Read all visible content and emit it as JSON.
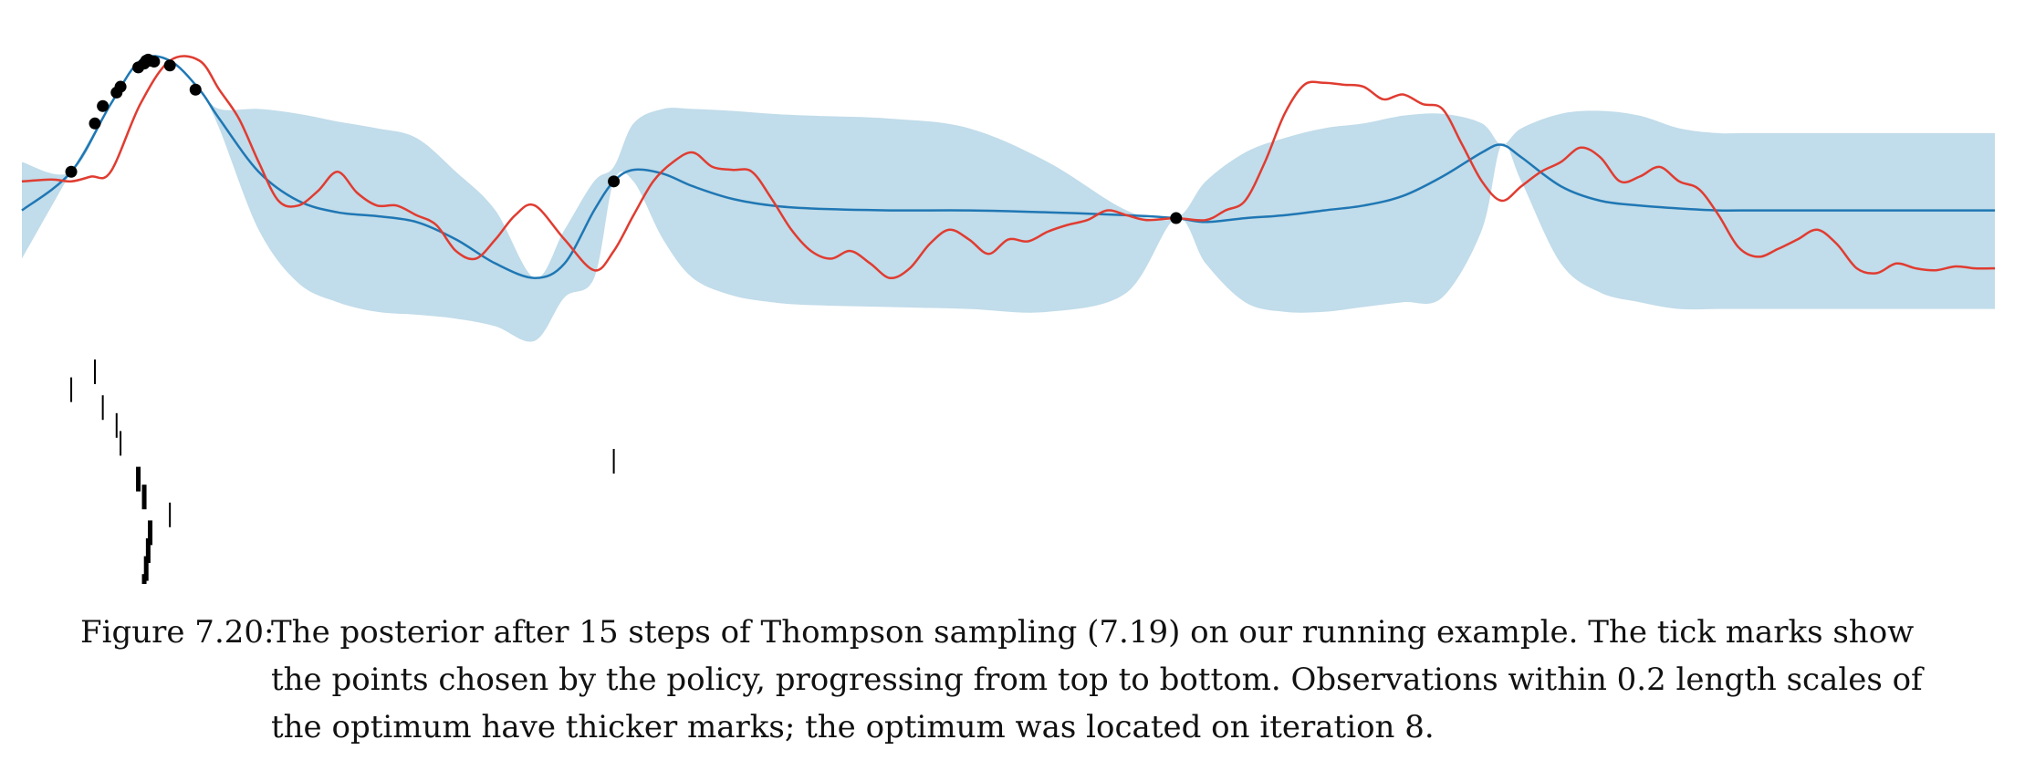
{
  "chart_data": {
    "type": "line",
    "title": "",
    "xlabel": "",
    "ylabel": "",
    "xlim": [
      0,
      1
    ],
    "ylim": [
      -1.6,
      1.8
    ],
    "grid": false,
    "legend": "none",
    "colors": {
      "credible_band": "#c1dcea",
      "posterior_mean": "#1f77b4",
      "thompson_sample": "#e03c31",
      "observations": "#000000",
      "ticks": "#000000"
    },
    "posterior_mean": {
      "x": [
        0,
        0.025,
        0.045,
        0.06,
        0.075,
        0.09,
        0.1,
        0.12,
        0.14,
        0.16,
        0.18,
        0.2,
        0.22,
        0.24,
        0.26,
        0.275,
        0.29,
        0.3,
        0.31,
        0.325,
        0.34,
        0.36,
        0.38,
        0.4,
        0.44,
        0.48,
        0.52,
        0.56,
        0.585,
        0.6,
        0.62,
        0.64,
        0.66,
        0.68,
        0.7,
        0.72,
        0.74,
        0.75,
        0.76,
        0.78,
        0.8,
        0.82,
        0.84,
        0.86,
        0.88,
        1.0
      ],
      "y": [
        0.0,
        0.4,
        1.1,
        1.55,
        1.55,
        1.25,
        0.95,
        0.4,
        0.1,
        -0.02,
        -0.06,
        -0.12,
        -0.3,
        -0.55,
        -0.7,
        -0.55,
        0.0,
        0.3,
        0.42,
        0.38,
        0.25,
        0.12,
        0.05,
        0.02,
        0.0,
        0.0,
        -0.02,
        -0.05,
        -0.08,
        -0.12,
        -0.08,
        -0.05,
        0.0,
        0.05,
        0.15,
        0.35,
        0.6,
        0.68,
        0.55,
        0.25,
        0.1,
        0.05,
        0.02,
        0.0,
        0.0,
        0.0
      ]
    },
    "credible_band": {
      "x": [
        0,
        0.025,
        0.045,
        0.06,
        0.075,
        0.09,
        0.1,
        0.12,
        0.14,
        0.16,
        0.18,
        0.2,
        0.22,
        0.24,
        0.26,
        0.275,
        0.29,
        0.3,
        0.31,
        0.325,
        0.34,
        0.36,
        0.38,
        0.4,
        0.44,
        0.48,
        0.52,
        0.56,
        0.585,
        0.6,
        0.62,
        0.64,
        0.66,
        0.68,
        0.7,
        0.72,
        0.74,
        0.75,
        0.76,
        0.78,
        0.8,
        0.82,
        0.84,
        0.86,
        0.88,
        1.0
      ],
      "upper": [
        0.5,
        0.4,
        1.1,
        1.55,
        1.55,
        1.25,
        1.05,
        1.05,
        1.0,
        0.92,
        0.85,
        0.75,
        0.4,
        0.0,
        -0.7,
        -0.2,
        0.3,
        0.45,
        0.9,
        1.05,
        1.05,
        1.03,
        1.0,
        0.98,
        0.95,
        0.85,
        0.5,
        0.0,
        -0.08,
        0.3,
        0.6,
        0.75,
        0.85,
        0.9,
        0.98,
        1.0,
        0.9,
        0.68,
        0.85,
        1.0,
        1.03,
        0.98,
        0.85,
        0.8,
        0.8,
        0.8
      ],
      "lower": [
        -0.5,
        0.4,
        1.1,
        1.55,
        1.55,
        1.25,
        0.85,
        -0.2,
        -0.75,
        -0.95,
        -1.05,
        -1.08,
        -1.12,
        -1.2,
        -1.35,
        -0.9,
        -0.7,
        0.3,
        0.3,
        -0.3,
        -0.7,
        -0.88,
        -0.95,
        -0.98,
        -1.0,
        -1.02,
        -1.05,
        -0.85,
        -0.08,
        -0.55,
        -0.95,
        -1.05,
        -1.05,
        -1.0,
        -0.95,
        -0.9,
        -0.2,
        0.68,
        0.3,
        -0.55,
        -0.85,
        -0.95,
        -1.02,
        -1.02,
        -1.02,
        -1.02
      ]
    },
    "thompson_sample": {
      "x": [
        0,
        0.015,
        0.025,
        0.035,
        0.045,
        0.06,
        0.075,
        0.09,
        0.1,
        0.11,
        0.12,
        0.13,
        0.14,
        0.15,
        0.16,
        0.17,
        0.18,
        0.19,
        0.2,
        0.21,
        0.22,
        0.23,
        0.24,
        0.25,
        0.26,
        0.275,
        0.29,
        0.3,
        0.31,
        0.32,
        0.33,
        0.34,
        0.35,
        0.36,
        0.37,
        0.38,
        0.39,
        0.4,
        0.41,
        0.42,
        0.43,
        0.44,
        0.45,
        0.46,
        0.47,
        0.48,
        0.49,
        0.5,
        0.51,
        0.52,
        0.53,
        0.54,
        0.55,
        0.56,
        0.57,
        0.585,
        0.6,
        0.61,
        0.62,
        0.63,
        0.64,
        0.65,
        0.66,
        0.67,
        0.68,
        0.69,
        0.7,
        0.71,
        0.72,
        0.73,
        0.74,
        0.75,
        0.76,
        0.77,
        0.78,
        0.79,
        0.8,
        0.81,
        0.82,
        0.83,
        0.84,
        0.85,
        0.86,
        0.87,
        0.88,
        0.89,
        0.9,
        0.91,
        0.92,
        0.93,
        0.94,
        0.95,
        0.96,
        0.97,
        0.98,
        0.99,
        1.0
      ],
      "y": [
        0.3,
        0.32,
        0.3,
        0.35,
        0.4,
        1.1,
        1.55,
        1.55,
        1.25,
        0.95,
        0.5,
        0.1,
        0.05,
        0.2,
        0.4,
        0.18,
        0.05,
        0.05,
        -0.05,
        -0.15,
        -0.42,
        -0.5,
        -0.3,
        -0.05,
        0.05,
        -0.3,
        -0.62,
        -0.42,
        -0.05,
        0.3,
        0.5,
        0.6,
        0.45,
        0.42,
        0.4,
        0.12,
        -0.2,
        -0.42,
        -0.5,
        -0.42,
        -0.55,
        -0.7,
        -0.6,
        -0.35,
        -0.2,
        -0.3,
        -0.45,
        -0.3,
        -0.32,
        -0.22,
        -0.15,
        -0.1,
        0.0,
        -0.05,
        -0.1,
        -0.08,
        -0.1,
        0.0,
        0.1,
        0.5,
        1.0,
        1.3,
        1.32,
        1.3,
        1.28,
        1.15,
        1.2,
        1.1,
        1.05,
        0.68,
        0.3,
        0.1,
        0.25,
        0.4,
        0.5,
        0.65,
        0.55,
        0.3,
        0.35,
        0.45,
        0.3,
        0.22,
        -0.05,
        -0.38,
        -0.48,
        -0.4,
        -0.3,
        -0.2,
        -0.35,
        -0.6,
        -0.65,
        -0.55,
        -0.6,
        -0.62,
        -0.58,
        -0.6,
        -0.6
      ]
    },
    "observations": {
      "x": [
        0.025,
        0.037,
        0.041,
        0.048,
        0.05,
        0.059,
        0.062,
        0.063,
        0.064,
        0.065,
        0.067,
        0.075,
        0.088,
        0.3,
        0.585
      ],
      "y": [
        0.4,
        0.9,
        1.08,
        1.22,
        1.28,
        1.48,
        1.52,
        1.55,
        1.56,
        1.55,
        1.54,
        1.5,
        1.25,
        0.3,
        -0.08
      ]
    },
    "observation_ticks": {
      "iteration": [
        1,
        2,
        3,
        4,
        5,
        6,
        7,
        8,
        9,
        10,
        11,
        12,
        13,
        14,
        15
      ],
      "x": [
        0.037,
        0.025,
        0.041,
        0.048,
        0.05,
        0.3,
        0.059,
        0.062,
        0.075,
        0.065,
        0.064,
        0.063,
        0.062,
        0.088,
        0.064
      ],
      "near_optimum": [
        false,
        false,
        false,
        false,
        false,
        false,
        true,
        true,
        false,
        true,
        true,
        true,
        true,
        false,
        true
      ]
    }
  },
  "caption": {
    "label": "Figure 7.20:",
    "text": "The posterior after 15 steps of Thompson sampling (7.19) on our running example. The tick marks show the points chosen by the policy, progressing from top to bottom. Observations within 0.2 length scales of the optimum have thicker marks; the optimum was located on iteration 8."
  }
}
